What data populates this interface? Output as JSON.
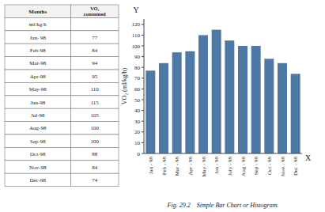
{
  "chart_data": {
    "type": "bar",
    "categories": [
      "Jan - 98",
      "Feb - 98",
      "Mar - 98",
      "Apr - 98",
      "May - 98",
      "Jun - 98",
      "July - 98",
      "Aug - 98",
      "Sep - 98",
      "Oct - 98",
      "Nov - 98",
      "Dec - 98"
    ],
    "values": [
      77,
      84,
      94,
      95,
      110,
      115,
      105,
      100,
      100,
      88,
      84,
      74
    ],
    "ylabel": "VO₂ (ml/kg/h)",
    "xlabel": "X",
    "annotations": [
      "Y"
    ],
    "caption": "Fig. 29.2    Simple Bar Chart or Histogram.",
    "ylim": [
      0,
      125
    ],
    "yticks": [
      0,
      10,
      20,
      30,
      40,
      50,
      60,
      70,
      80,
      90,
      100,
      110,
      120
    ],
    "grid": false,
    "table": {
      "columns": [
        "Months",
        "VO₂\nconsumed"
      ],
      "unit": "ml/kg/h",
      "categories": [
        "Jan- 98",
        "Feb-98",
        "Mar-98",
        "Apr-98",
        "May-98",
        "Jun-98",
        "Jul-98",
        "Aug-98",
        "Sep-98",
        "Oct-98",
        "Nov-98",
        "Dec-98"
      ],
      "values": [
        77,
        84,
        94,
        95,
        110,
        115,
        105,
        100,
        100,
        88,
        84,
        74
      ]
    }
  }
}
